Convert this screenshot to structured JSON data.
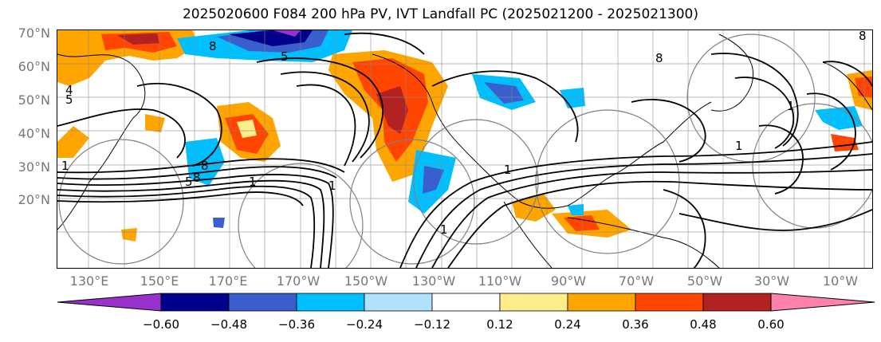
{
  "title": "2025020600 F084 200 hPa PV, IVT Landfall PC (2025021200 - 2025021300)",
  "lat_labels": [
    "70°N",
    "60°N",
    "50°N",
    "40°N",
    "30°N",
    "20°N"
  ],
  "lon_labels": [
    "130°E",
    "150°E",
    "170°E",
    "170°W",
    "150°W",
    "130°W",
    "110°W",
    "90°W",
    "70°W",
    "50°W",
    "30°W",
    "10°W"
  ],
  "colorbar": {
    "colors": [
      "#9932cc",
      "#00008b",
      "#3a5fcd",
      "#00bfff",
      "#b0e2ff",
      "#ffffff",
      "#ffec8b",
      "#ffa500",
      "#ff4500",
      "#b22222",
      "#ff82ab"
    ],
    "tick_labels": [
      "−0.60",
      "−0.48",
      "−0.36",
      "−0.24",
      "−0.12",
      "0.12",
      "0.24",
      "0.36",
      "0.48",
      "0.60"
    ]
  },
  "contour_labels": [
    "4",
    "5",
    "8",
    "5",
    "8",
    "1",
    "8",
    "1",
    "8",
    "1",
    "1",
    "1",
    "1",
    "8",
    "1",
    "5"
  ]
}
